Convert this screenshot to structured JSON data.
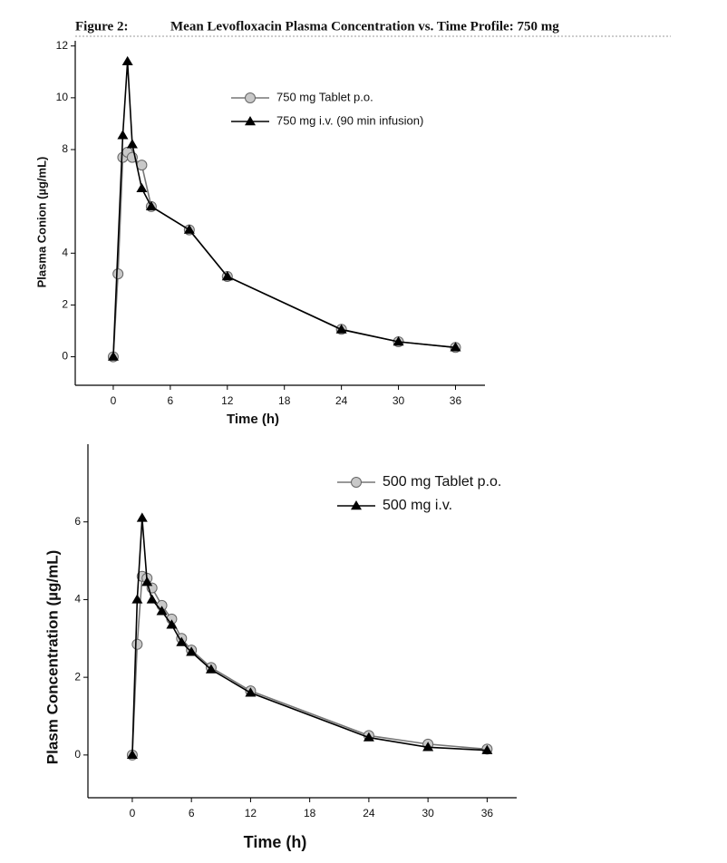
{
  "figure_label": "Figure 2:",
  "figure_title": "Mean Levofloxacin Plasma Concentration vs. Time Profile: 750 mg",
  "chart_data": [
    {
      "type": "line",
      "x_label": "Time (h)",
      "y_label": "Plasma Conion (µg/mL)",
      "xlim": [
        -4,
        39.1
      ],
      "ylim": [
        -1.1,
        12.2
      ],
      "xticks": [
        0,
        6,
        12,
        18,
        24,
        30,
        36
      ],
      "yticks": [
        0,
        2,
        4,
        8,
        10,
        12
      ],
      "legend": "upper right",
      "series": [
        {
          "name": "750 mg Tablet p.o.",
          "color": "#c8c8c8",
          "marker": "circle",
          "x": [
            0,
            0.5,
            1,
            1.5,
            2,
            3,
            4,
            8,
            12,
            24,
            30,
            36
          ],
          "values": [
            0,
            3.2,
            7.7,
            7.9,
            7.7,
            7.4,
            5.8,
            4.9,
            3.1,
            1.06,
            0.58,
            0.36
          ]
        },
        {
          "name": "750 mg i.v. (90 min infusion)",
          "color": "#000000",
          "marker": "triangle",
          "x": [
            0,
            1,
            1.5,
            2,
            3,
            4,
            8,
            12,
            24,
            30,
            36
          ],
          "values": [
            0,
            8.55,
            11.4,
            8.2,
            6.5,
            5.8,
            4.9,
            3.1,
            1.05,
            0.58,
            0.36
          ]
        }
      ]
    },
    {
      "type": "line",
      "x_label": "Time (h)",
      "y_label": "Plasm Concentration (µg/mL)",
      "xlim": [
        -4.5,
        39
      ],
      "ylim": [
        -1.1,
        8
      ],
      "xticks": [
        0,
        6,
        12,
        18,
        24,
        30,
        36
      ],
      "yticks": [
        0,
        2,
        4,
        6
      ],
      "legend": "upper right",
      "series": [
        {
          "name": "500 mg Tablet p.o.",
          "color": "#c8c8c8",
          "marker": "circle",
          "x": [
            0,
            0.5,
            1,
            1.5,
            2,
            3,
            4,
            5,
            6,
            8,
            12,
            24,
            30,
            36
          ],
          "values": [
            0,
            2.85,
            4.6,
            4.55,
            4.3,
            3.85,
            3.5,
            3.0,
            2.7,
            2.25,
            1.65,
            0.5,
            0.28,
            0.15
          ]
        },
        {
          "name": "500 mg i.v.",
          "color": "#000000",
          "marker": "triangle",
          "x": [
            0,
            0.5,
            1,
            1.5,
            2,
            3,
            4,
            5,
            6,
            8,
            12,
            24,
            30,
            36
          ],
          "values": [
            0,
            4.0,
            6.1,
            4.45,
            4.0,
            3.7,
            3.35,
            2.9,
            2.65,
            2.2,
            1.6,
            0.45,
            0.2,
            0.12
          ]
        }
      ]
    }
  ]
}
